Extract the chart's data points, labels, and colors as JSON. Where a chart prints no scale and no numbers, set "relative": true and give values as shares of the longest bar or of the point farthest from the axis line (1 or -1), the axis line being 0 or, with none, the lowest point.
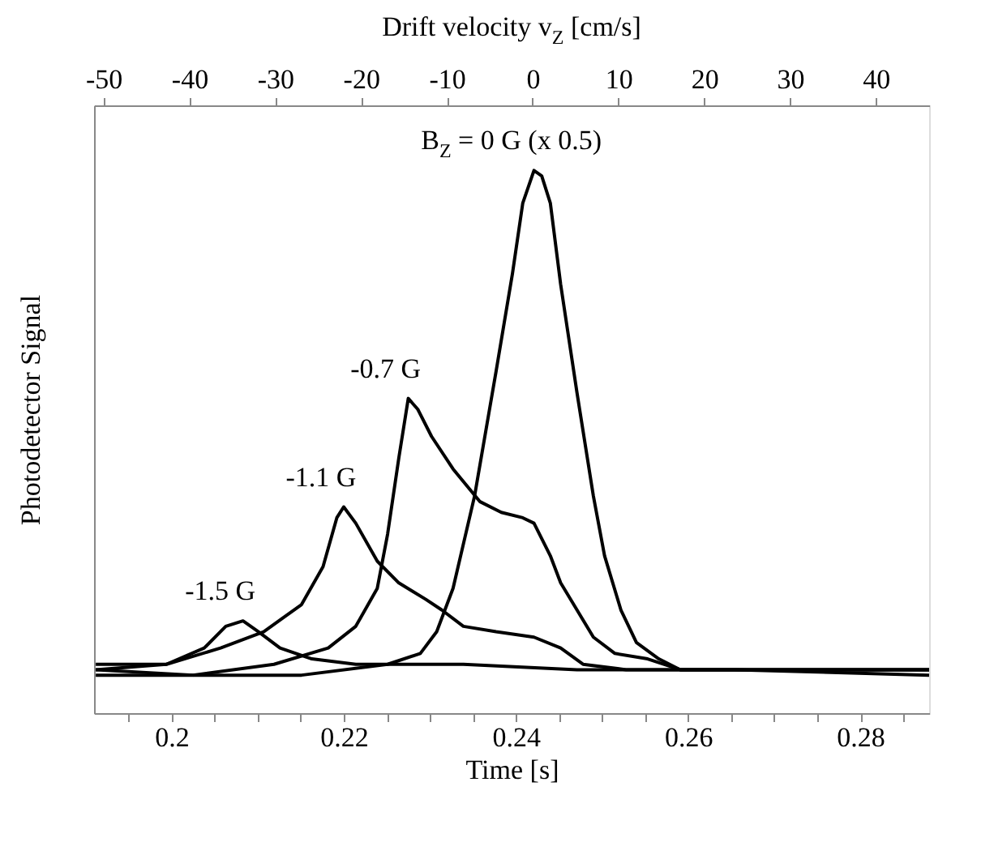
{
  "chart_data": {
    "type": "line",
    "xlabel": "Time [s]",
    "ylabel": "Photodetector Signal",
    "x2label": "Drift velocity v$_{Z}$ [cm/s]",
    "relative": true,
    "grid": false,
    "legend": false,
    "marker": "none",
    "line_style": "solid",
    "xlim": [
      0.191,
      0.288
    ],
    "xticks": [
      {
        "value": 0.195,
        "label": null
      },
      0.2,
      {
        "value": 0.205,
        "label": null
      },
      {
        "value": 0.21,
        "label": null
      },
      {
        "value": 0.215,
        "label": null
      },
      0.22,
      {
        "value": 0.225,
        "label": null
      },
      {
        "value": 0.23,
        "label": null
      },
      {
        "value": 0.235,
        "label": null
      },
      0.24,
      {
        "value": 0.245,
        "label": null
      },
      {
        "value": 0.25,
        "label": null
      },
      {
        "value": 0.255,
        "label": null
      },
      0.26,
      {
        "value": 0.265,
        "label": null
      },
      {
        "value": 0.27,
        "label": null
      },
      {
        "value": 0.275,
        "label": null
      },
      0.28,
      {
        "value": 0.285,
        "label": null
      }
    ],
    "x2lim": [
      -51.1,
      46.2
    ],
    "x2ticks": [
      -50,
      -40,
      -30,
      -20,
      -10,
      0,
      10,
      20,
      30,
      40
    ],
    "series": [
      {
        "name": "B$_{Z}$ = 0 G (x 0.5)",
        "color": "#000000",
        "x": [
          0.1912,
          0.2025,
          0.2151,
          0.2251,
          0.2289,
          0.2308,
          0.2327,
          0.2352,
          0.2377,
          0.2396,
          0.2408,
          0.2421,
          0.243,
          0.244,
          0.2452,
          0.2471,
          0.249,
          0.2503,
          0.2522,
          0.254,
          0.2566,
          0.2591,
          0.2654,
          0.2716,
          0.2779,
          0.288
        ],
        "values": [
          0.08,
          0.07,
          0.07,
          0.09,
          0.11,
          0.15,
          0.23,
          0.4,
          0.63,
          0.81,
          0.94,
          1.0,
          0.99,
          0.94,
          0.79,
          0.59,
          0.4,
          0.29,
          0.19,
          0.13,
          0.1,
          0.08,
          0.08,
          0.08,
          0.08,
          0.08
        ]
      },
      {
        "name": "-0.7 G",
        "color": "#000000",
        "x": [
          0.1912,
          0.2025,
          0.2119,
          0.2182,
          0.2214,
          0.2239,
          0.2251,
          0.2264,
          0.2275,
          0.2286,
          0.2302,
          0.2327,
          0.2358,
          0.2383,
          0.2408,
          0.2421,
          0.244,
          0.2452,
          0.2471,
          0.249,
          0.2515,
          0.2553,
          0.2591,
          0.2654,
          0.288
        ],
        "values": [
          0.07,
          0.07,
          0.09,
          0.12,
          0.16,
          0.23,
          0.33,
          0.47,
          0.58,
          0.56,
          0.51,
          0.45,
          0.39,
          0.37,
          0.36,
          0.35,
          0.29,
          0.24,
          0.19,
          0.14,
          0.11,
          0.1,
          0.08,
          0.08,
          0.07
        ]
      },
      {
        "name": "-1.1 G",
        "color": "#000000",
        "x": [
          0.1912,
          0.1994,
          0.2057,
          0.2107,
          0.2151,
          0.2176,
          0.2192,
          0.22,
          0.2214,
          0.2239,
          0.2264,
          0.2295,
          0.2314,
          0.2339,
          0.2377,
          0.2421,
          0.2452,
          0.2478,
          0.2528,
          0.2654,
          0.288
        ],
        "values": [
          0.08,
          0.09,
          0.12,
          0.15,
          0.2,
          0.27,
          0.36,
          0.38,
          0.35,
          0.28,
          0.24,
          0.21,
          0.19,
          0.16,
          0.15,
          0.14,
          0.12,
          0.09,
          0.08,
          0.08,
          0.08
        ]
      },
      {
        "name": "-1.5 G",
        "color": "#000000",
        "x": [
          0.1912,
          0.1994,
          0.2038,
          0.2063,
          0.2083,
          0.2101,
          0.2126,
          0.2163,
          0.2214,
          0.2339,
          0.2471,
          0.2654,
          0.288
        ],
        "values": [
          0.09,
          0.09,
          0.12,
          0.16,
          0.17,
          0.15,
          0.12,
          0.1,
          0.09,
          0.09,
          0.08,
          0.08,
          0.08
        ]
      }
    ]
  }
}
